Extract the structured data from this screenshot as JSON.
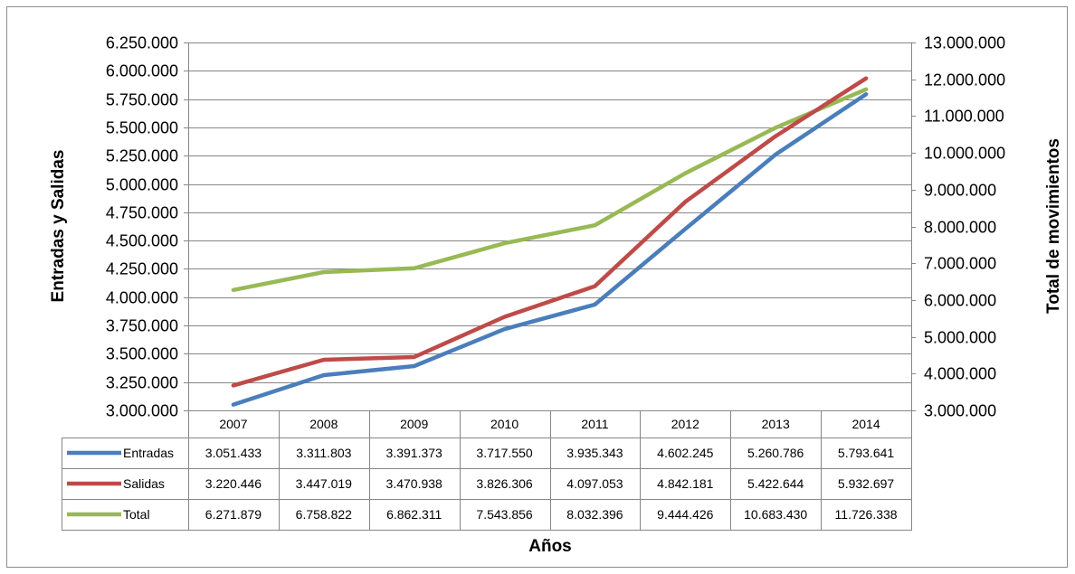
{
  "chart_data": {
    "type": "line",
    "categories": [
      "2007",
      "2008",
      "2009",
      "2010",
      "2011",
      "2012",
      "2013",
      "2014"
    ],
    "series": [
      {
        "name": "Entradas",
        "axis": "left",
        "color": "#4a7ebb",
        "values": [
          3051433,
          3311803,
          3391373,
          3717550,
          3935343,
          4602245,
          5260786,
          5793641
        ],
        "labels": [
          "3.051.433",
          "3.311.803",
          "3.391.373",
          "3.717.550",
          "3.935.343",
          "4.602.245",
          "5.260.786",
          "5.793.641"
        ]
      },
      {
        "name": "Salidas",
        "axis": "left",
        "color": "#be4b48",
        "values": [
          3220446,
          3447019,
          3470938,
          3826306,
          4097053,
          4842181,
          5422644,
          5932697
        ],
        "labels": [
          "3.220.446",
          "3.447.019",
          "3.470.938",
          "3.826.306",
          "4.097.053",
          "4.842.181",
          "5.422.644",
          "5.932.697"
        ]
      },
      {
        "name": "Total",
        "axis": "right",
        "color": "#98b954",
        "values": [
          6271879,
          6758822,
          6862311,
          7543856,
          8032396,
          9444426,
          10683430,
          11726338
        ],
        "labels": [
          "6.271.879",
          "6.758.822",
          "6.862.311",
          "7.543.856",
          "8.032.396",
          "9.444.426",
          "10.683.430",
          "11.726.338"
        ]
      }
    ],
    "ylabel": "Entradas y Salidas",
    "y2label": "Total de movimientos",
    "xlabel": "Años",
    "ylim": [
      3000000,
      6250000
    ],
    "y2lim": [
      3000000,
      13000000
    ],
    "yticks": [
      "3.000.000",
      "3.250.000",
      "3.500.000",
      "3.750.000",
      "4.000.000",
      "4.250.000",
      "4.500.000",
      "4.750.000",
      "5.000.000",
      "5.250.000",
      "5.500.000",
      "5.750.000",
      "6.000.000",
      "6.250.000"
    ],
    "y2ticks": [
      "3.000.000",
      "4.000.000",
      "5.000.000",
      "6.000.000",
      "7.000.000",
      "8.000.000",
      "9.000.000",
      "10.000.000",
      "11.000.000",
      "12.000.000",
      "13.000.000"
    ],
    "grid": true,
    "legend": "data-table"
  }
}
